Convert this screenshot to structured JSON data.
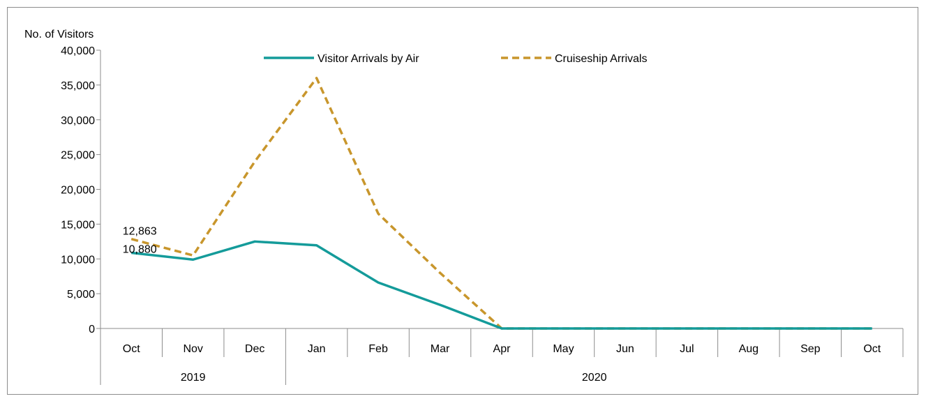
{
  "chart_data": {
    "type": "line",
    "ylabel": "No. of  Visitors",
    "ylim": [
      0,
      40000
    ],
    "yticks": [
      0,
      5000,
      10000,
      15000,
      20000,
      25000,
      30000,
      35000,
      40000
    ],
    "ytick_labels": [
      "0",
      "5,000",
      "10,000",
      "15,000",
      "20,000",
      "25,000",
      "30,000",
      "35,000",
      "40,000"
    ],
    "categories": [
      "Oct",
      "Nov",
      "Dec",
      "Jan",
      "Feb",
      "Mar",
      "Apr",
      "May",
      "Jun",
      "Jul",
      "Aug",
      "Sep",
      "Oct"
    ],
    "groups": [
      {
        "label": "2019",
        "span": 3
      },
      {
        "label": "2020",
        "span": 10
      }
    ],
    "series": [
      {
        "name": "Visitor Arrivals by Air",
        "color": "#149b9a",
        "dash": "solid",
        "values": [
          10880,
          9900,
          12500,
          11950,
          6600,
          3400,
          0,
          0,
          0,
          0,
          0,
          0,
          0
        ]
      },
      {
        "name": "Cruiseship Arrivals",
        "color": "#c8962c",
        "dash": "dashed",
        "values": [
          12863,
          10500,
          24000,
          36000,
          16500,
          8000,
          0,
          0,
          0,
          0,
          0,
          0,
          0
        ]
      }
    ],
    "data_labels": [
      {
        "series": 1,
        "index": 0,
        "text": "12,863"
      },
      {
        "series": 0,
        "index": 0,
        "text": "10,880"
      }
    ],
    "legend_position": "top",
    "grid": false
  }
}
